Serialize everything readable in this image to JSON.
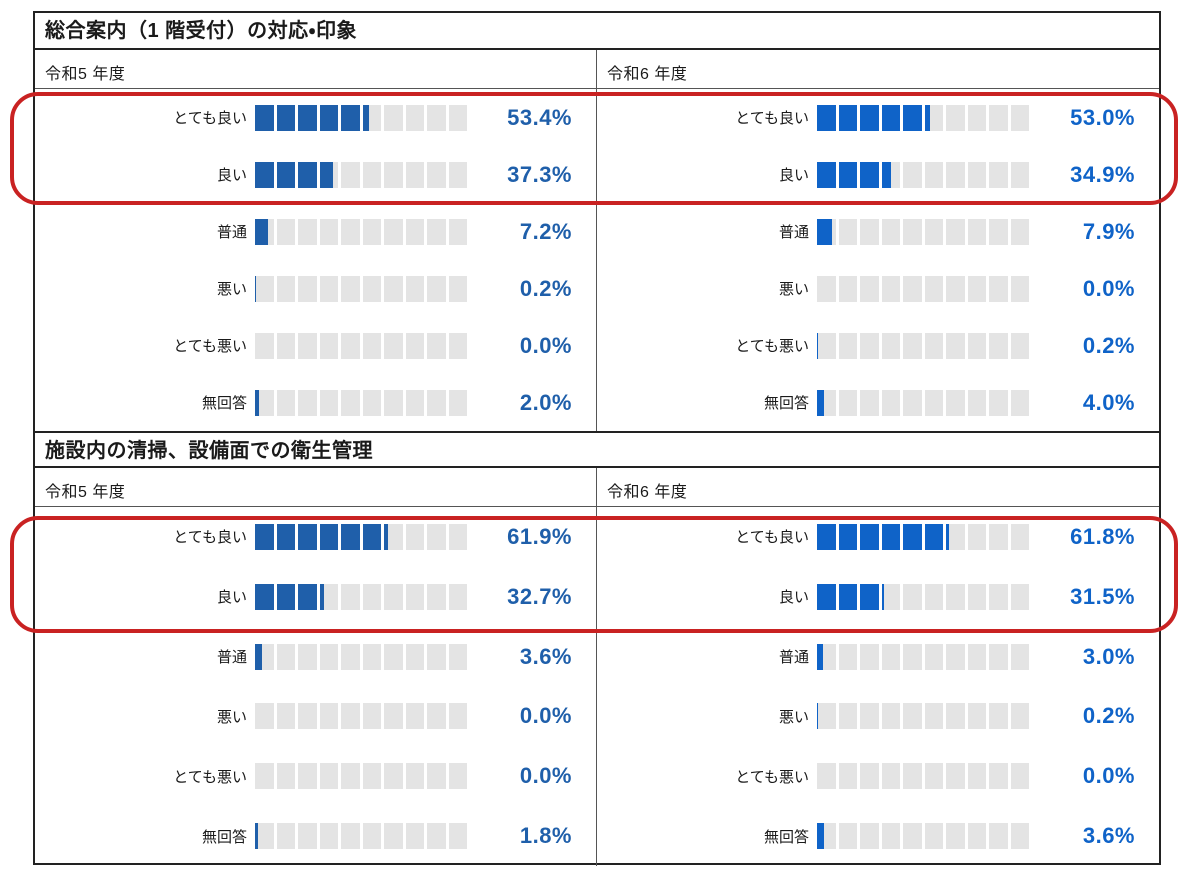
{
  "colors": {
    "year5_blue": "#1F5FAA",
    "year6_blue": "#0F63C8",
    "track_gray": "#E4E4E4",
    "border_dark": "#222222",
    "highlight_red": "#C92222"
  },
  "annotations": {
    "highlight_color": "#C92222"
  },
  "sections": [
    {
      "title": "総合案内（1 階受付）の対応・印象",
      "columns": [
        {
          "header": "令和5 年度",
          "color_key": "year5_blue",
          "rows": [
            {
              "label": "とても良い",
              "value": 53.4,
              "display": "53.4%"
            },
            {
              "label": "良い",
              "value": 37.3,
              "display": "37.3%"
            },
            {
              "label": "普通",
              "value": 7.2,
              "display": "7.2%"
            },
            {
              "label": "悪い",
              "value": 0.2,
              "display": "0.2%"
            },
            {
              "label": "とても悪い",
              "value": 0.0,
              "display": "0.0%"
            },
            {
              "label": "無回答",
              "value": 2.0,
              "display": "2.0%"
            }
          ]
        },
        {
          "header": "令和6 年度",
          "color_key": "year6_blue",
          "rows": [
            {
              "label": "とても良い",
              "value": 53.0,
              "display": "53.0%"
            },
            {
              "label": "良い",
              "value": 34.9,
              "display": "34.9%"
            },
            {
              "label": "普通",
              "value": 7.9,
              "display": "7.9%"
            },
            {
              "label": "悪い",
              "value": 0.0,
              "display": "0.0%"
            },
            {
              "label": "とても悪い",
              "value": 0.2,
              "display": "0.2%"
            },
            {
              "label": "無回答",
              "value": 4.0,
              "display": "4.0%"
            }
          ]
        }
      ]
    },
    {
      "title": "施設内の清掃、設備面での衛生管理",
      "columns": [
        {
          "header": "令和5 年度",
          "color_key": "year5_blue",
          "rows": [
            {
              "label": "とても良い",
              "value": 61.9,
              "display": "61.9%"
            },
            {
              "label": "良い",
              "value": 32.7,
              "display": "32.7%"
            },
            {
              "label": "普通",
              "value": 3.6,
              "display": "3.6%"
            },
            {
              "label": "悪い",
              "value": 0.0,
              "display": "0.0%"
            },
            {
              "label": "とても悪い",
              "value": 0.0,
              "display": "0.0%"
            },
            {
              "label": "無回答",
              "value": 1.8,
              "display": "1.8%"
            }
          ]
        },
        {
          "header": "令和6 年度",
          "color_key": "year6_blue",
          "rows": [
            {
              "label": "とても良い",
              "value": 61.8,
              "display": "61.8%"
            },
            {
              "label": "良い",
              "value": 31.5,
              "display": "31.5%"
            },
            {
              "label": "普通",
              "value": 3.0,
              "display": "3.0%"
            },
            {
              "label": "悪い",
              "value": 0.2,
              "display": "0.2%"
            },
            {
              "label": "とても悪い",
              "value": 0.0,
              "display": "0.0%"
            },
            {
              "label": "無回答",
              "value": 3.6,
              "display": "3.6%"
            }
          ]
        }
      ]
    }
  ],
  "chart_data": [
    {
      "type": "bar",
      "title": "総合案内（1 階受付）の対応・印象 — 令和5 年度",
      "categories": [
        "とても良い",
        "良い",
        "普通",
        "悪い",
        "とても悪い",
        "無回答"
      ],
      "values": [
        53.4,
        37.3,
        7.2,
        0.2,
        0.0,
        2.0
      ],
      "xlabel": "",
      "ylabel": "",
      "xlim": [
        0,
        100
      ],
      "unit": "%",
      "orientation": "horizontal",
      "segments": 10,
      "grid": false,
      "legend": "none"
    },
    {
      "type": "bar",
      "title": "総合案内（1 階受付）の対応・印象 — 令和6 年度",
      "categories": [
        "とても良い",
        "良い",
        "普通",
        "悪い",
        "とても悪い",
        "無回答"
      ],
      "values": [
        53.0,
        34.9,
        7.9,
        0.0,
        0.2,
        4.0
      ],
      "xlabel": "",
      "ylabel": "",
      "xlim": [
        0,
        100
      ],
      "unit": "%",
      "orientation": "horizontal",
      "segments": 10,
      "grid": false,
      "legend": "none"
    },
    {
      "type": "bar",
      "title": "施設内の清掃、設備面での衛生管理 — 令和5 年度",
      "categories": [
        "とても良い",
        "良い",
        "普通",
        "悪い",
        "とても悪い",
        "無回答"
      ],
      "values": [
        61.9,
        32.7,
        3.6,
        0.0,
        0.0,
        1.8
      ],
      "xlabel": "",
      "ylabel": "",
      "xlim": [
        0,
        100
      ],
      "unit": "%",
      "orientation": "horizontal",
      "segments": 10,
      "grid": false,
      "legend": "none"
    },
    {
      "type": "bar",
      "title": "施設内の清掃、設備面での衛生管理 — 令和6 年度",
      "categories": [
        "とても良い",
        "良い",
        "普通",
        "悪い",
        "とても悪い",
        "無回答"
      ],
      "values": [
        61.8,
        31.5,
        3.0,
        0.2,
        0.0,
        3.6
      ],
      "xlabel": "",
      "ylabel": "",
      "xlim": [
        0,
        100
      ],
      "unit": "%",
      "orientation": "horizontal",
      "segments": 10,
      "grid": false,
      "legend": "none"
    }
  ]
}
